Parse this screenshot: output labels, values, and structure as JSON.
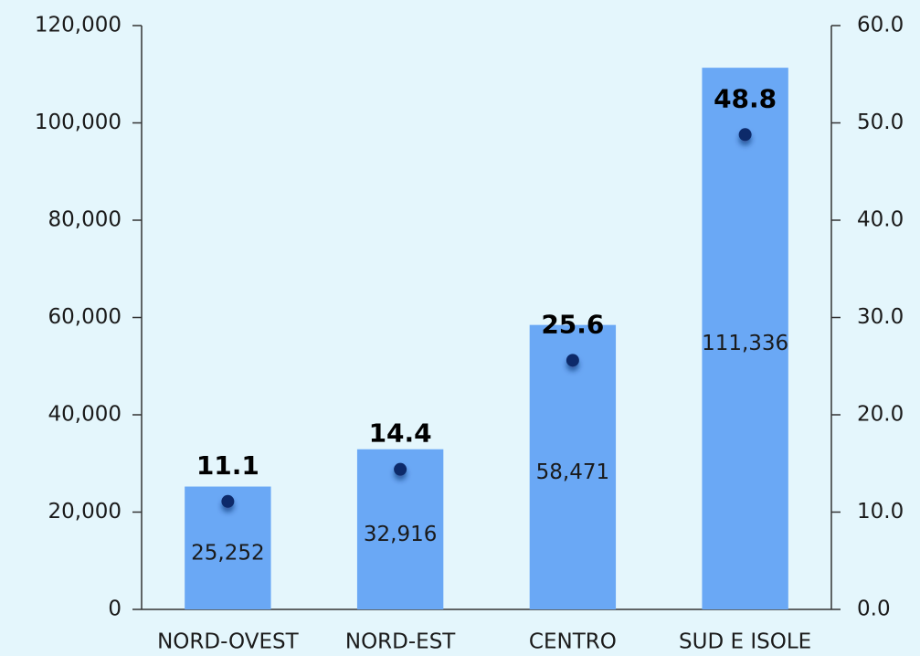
{
  "chart_data": {
    "type": "bar",
    "categories": [
      "NORD-OVEST",
      "NORD-EST",
      "CENTRO",
      "SUD E ISOLE"
    ],
    "series": [
      {
        "type": "bar",
        "color": "#6aa8f5",
        "values": [
          25252,
          32916,
          58471,
          111336
        ],
        "value_labels": [
          "25,252",
          "32,916",
          "58,471",
          "111,336"
        ]
      },
      {
        "type": "scatter",
        "axis": "y2",
        "color": "#0d2c6b",
        "values": [
          11.1,
          14.4,
          25.6,
          48.8
        ]
      }
    ],
    "ylim": [
      0,
      120000
    ],
    "yticks": [
      0,
      {
        "value": 20000,
        "label": "20,000"
      },
      {
        "value": 40000,
        "label": "40,000"
      },
      {
        "value": 60000,
        "label": "60,000"
      },
      {
        "value": 80000,
        "label": "80,000"
      },
      {
        "value": 100000,
        "label": "100,000"
      },
      {
        "value": 120000,
        "label": "120,000"
      }
    ],
    "y2lim": [
      0,
      60
    ],
    "y2ticks": [
      {
        "value": 0,
        "label": "0.0"
      },
      {
        "value": 10,
        "label": "10.0"
      },
      {
        "value": 20,
        "label": "20.0"
      },
      {
        "value": 30,
        "label": "30.0"
      },
      {
        "value": 40,
        "label": "40.0"
      },
      {
        "value": 50,
        "label": "50.0"
      },
      {
        "value": 60,
        "label": "60.0"
      }
    ],
    "grid": false
  }
}
